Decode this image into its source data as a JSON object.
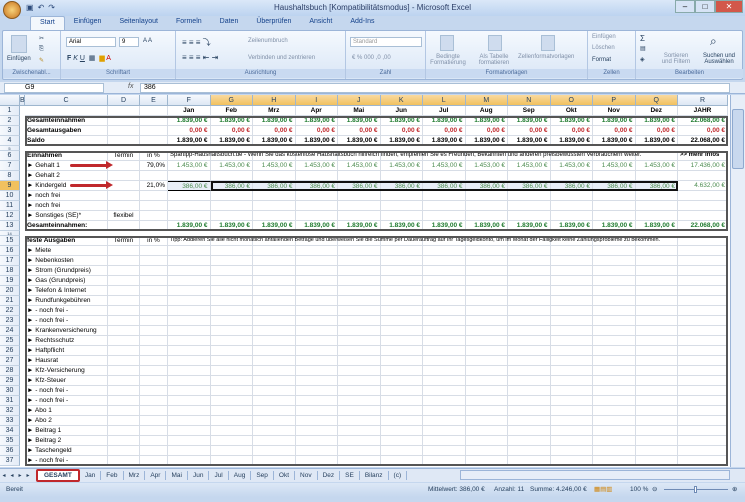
{
  "window": {
    "title": "Haushaltsbuch [Kompatibilitätsmodus] - Microsoft Excel"
  },
  "ribbon": {
    "tabs": [
      "Start",
      "Einfügen",
      "Seitenlayout",
      "Formeln",
      "Daten",
      "Überprüfen",
      "Ansicht",
      "Add-Ins"
    ],
    "groups": {
      "clipboard": "Zwischenabl...",
      "font": "Schriftart",
      "alignment": "Ausrichtung",
      "number": "Zahl",
      "styles": "Formatvorlagen",
      "cells": "Zellen",
      "editing": "Bearbeiten"
    },
    "paste": "Einfügen",
    "font_name": "Arial",
    "font_size": "9",
    "wrap_text": "Zeilenumbruch",
    "merge": "Verbinden und zentrieren",
    "number_format": "Standard",
    "cond_format": "Bedingte Formatierung",
    "as_table": "Als Tabelle formatieren",
    "cell_styles": "Zellenformatvorlagen",
    "insert": "Einfügen",
    "delete": "Löschen",
    "format": "Format",
    "sort": "Sortieren und Filtern",
    "find": "Suchen und Auswählen"
  },
  "formula_bar": {
    "name_box": "G9",
    "fx": "fx",
    "value": "386"
  },
  "columns": [
    "B",
    "C",
    "D",
    "E",
    "F",
    "G",
    "H",
    "I",
    "J",
    "K",
    "L",
    "M",
    "N",
    "O",
    "P",
    "Q",
    "R"
  ],
  "selected_columns": [
    "G",
    "H",
    "I",
    "J",
    "K",
    "L",
    "M",
    "N",
    "O",
    "P",
    "Q"
  ],
  "selected_row": "9",
  "months": [
    "Jan",
    "Feb",
    "Mrz",
    "Apr",
    "Mai",
    "Jun",
    "Jul",
    "Aug",
    "Sep",
    "Okt",
    "Nov",
    "Dez"
  ],
  "year_label": "JAHR",
  "summary": {
    "rows": [
      {
        "label": "Gesamteinnahmen",
        "monthly": "1.839,00 €",
        "year": "22.068,00 €"
      },
      {
        "label": "Gesamtausgaben",
        "monthly": "0,00 €",
        "year": "0,00 €"
      },
      {
        "label": "Saldo",
        "monthly": "1.839,00 €",
        "year": "22.068,00 €"
      }
    ]
  },
  "income": {
    "header": "Einnahmen",
    "termin": "Termin",
    "percent": "in %",
    "banner": "Spartipp-Haushaltsbuch.de - Wenn Sie das kostenlose Haushaltsbuch hilfreich finden, empfehlen Sie es Freunden, Bekannten und anderen preisbewussten Verbrauchern weiter.",
    "more_info": ">> mehr Infos",
    "items": [
      {
        "label": "Gehalt 1",
        "termin": "",
        "percent": "79,0%",
        "monthly": "1.453,00 €",
        "year": "17.436,00 €"
      },
      {
        "label": "Gehalt 2",
        "termin": "",
        "percent": "",
        "monthly": "",
        "year": ""
      },
      {
        "label": "Kindergeld",
        "termin": "",
        "percent": "21,0%",
        "monthly": "386,00 €",
        "year": "4.632,00 €"
      },
      {
        "label": "noch frei",
        "termin": "",
        "percent": "",
        "monthly": "",
        "year": ""
      },
      {
        "label": "noch frei",
        "termin": "",
        "percent": "",
        "monthly": "",
        "year": ""
      },
      {
        "label": "Sonstiges (SE)*",
        "termin": "flexibel",
        "percent": "",
        "monthly": "",
        "year": ""
      }
    ],
    "total_label": "Gesamteinnahmen:",
    "total_monthly": "1.839,00 €",
    "total_year": "22.068,00 €"
  },
  "expenses": {
    "header": "feste Ausgaben",
    "termin": "Termin",
    "percent": "in %",
    "tip": "Tipp: Addieren Sie alle nicht monatlich anfallenden Beträge und überweisen Sie die Summe per Dauerauftrag auf Ihr Tagesgeldkonto, um im Monat der Fälligkeit keine Zahlungsprobleme zu bekommen.",
    "items": [
      "Miete",
      "Nebenkosten",
      "Strom (Grundpreis)",
      "Gas (Grundpreis)",
      "Telefon & Internet",
      "Rundfunkgebühren",
      "- noch frei -",
      "- noch frei -",
      "Krankenversicherung",
      "Rechtsschutz",
      "Haftpflicht",
      "Hausrat",
      "Kfz-Versicherung",
      "Kfz-Steuer",
      "- noch frei -",
      "- noch frei -",
      "Abo 1",
      "Abo 2",
      "Beitrag 1",
      "Beitrag 2",
      "Taschengeld",
      "- noch frei -"
    ]
  },
  "sheet_tabs": [
    "GESAMT",
    "Jan",
    "Feb",
    "Mrz",
    "Apr",
    "Mai",
    "Jun",
    "Jul",
    "Aug",
    "Sep",
    "Okt",
    "Nov",
    "Dez",
    "SE",
    "Bilanz",
    "(c)"
  ],
  "active_sheet": "GESAMT",
  "status": {
    "ready": "Bereit",
    "average": "Mittelwert: 386,00 €",
    "count": "Anzahl: 11",
    "sum": "Summe: 4.246,00 €",
    "zoom": "100 %",
    "zoom_percent": 100
  },
  "colors": {
    "accent_red": "#c0282c",
    "green": "#1e7a2e",
    "selection": "#f1c15f"
  }
}
